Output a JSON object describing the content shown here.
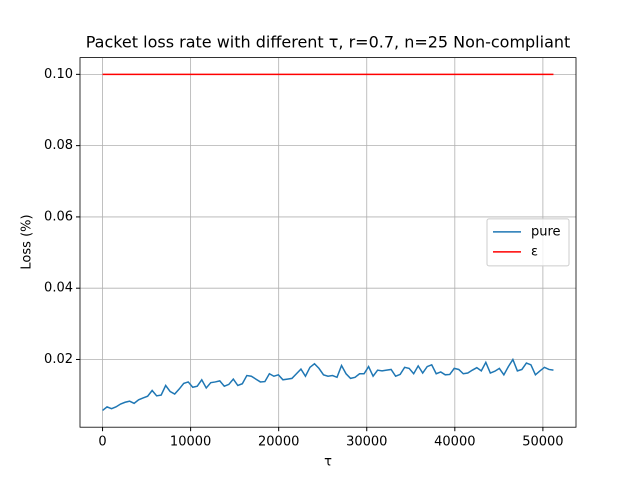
{
  "chart_data": {
    "type": "line",
    "title": "Packet loss rate with different τ, r=0.7, n=25 Non-compliant",
    "xlabel": "τ",
    "ylabel": "Loss (%)",
    "x": [
      0,
      512,
      1024,
      1536,
      2048,
      2560,
      3072,
      3584,
      4096,
      4608,
      5120,
      5632,
      6144,
      6656,
      7168,
      7680,
      8192,
      8704,
      9216,
      9728,
      10240,
      10752,
      11264,
      11776,
      12288,
      12800,
      13312,
      13824,
      14336,
      14848,
      15360,
      15872,
      16384,
      16896,
      17408,
      17920,
      18432,
      18944,
      19456,
      19968,
      20480,
      20992,
      21504,
      22016,
      22528,
      23040,
      23552,
      24064,
      24576,
      25088,
      25600,
      26112,
      26624,
      27136,
      27648,
      28160,
      28672,
      29184,
      29696,
      30208,
      30720,
      31232,
      31744,
      32256,
      32768,
      33280,
      33792,
      34304,
      34816,
      35328,
      35840,
      36352,
      36864,
      37376,
      37888,
      38400,
      38912,
      39424,
      39936,
      40448,
      40960,
      41472,
      41984,
      42496,
      43008,
      43520,
      44032,
      44544,
      45056,
      45568,
      46080,
      46592,
      47104,
      47616,
      48128,
      48640,
      49152,
      49664,
      50176,
      50688,
      51200
    ],
    "series": [
      {
        "name": "pure",
        "color": "#1f77b4",
        "values": [
          0.0057,
          0.0067,
          0.0062,
          0.0067,
          0.0075,
          0.008,
          0.0083,
          0.0077,
          0.0087,
          0.0092,
          0.0097,
          0.0113,
          0.0098,
          0.01,
          0.0127,
          0.011,
          0.0103,
          0.0117,
          0.0133,
          0.0137,
          0.0122,
          0.0125,
          0.0143,
          0.012,
          0.0135,
          0.0137,
          0.014,
          0.0125,
          0.013,
          0.0145,
          0.0127,
          0.0132,
          0.0155,
          0.0153,
          0.0145,
          0.0137,
          0.0138,
          0.016,
          0.0153,
          0.0157,
          0.0143,
          0.0145,
          0.0147,
          0.016,
          0.0173,
          0.0153,
          0.0178,
          0.0188,
          0.0175,
          0.0157,
          0.0153,
          0.0155,
          0.015,
          0.0183,
          0.016,
          0.0147,
          0.015,
          0.016,
          0.016,
          0.018,
          0.0153,
          0.017,
          0.0168,
          0.017,
          0.0172,
          0.0153,
          0.0158,
          0.0178,
          0.0175,
          0.016,
          0.0182,
          0.0162,
          0.018,
          0.0185,
          0.016,
          0.0165,
          0.0157,
          0.0158,
          0.0175,
          0.0172,
          0.016,
          0.0162,
          0.017,
          0.0177,
          0.0168,
          0.0192,
          0.0162,
          0.0167,
          0.0175,
          0.0157,
          0.018,
          0.02,
          0.0168,
          0.0172,
          0.019,
          0.0185,
          0.0157,
          0.0168,
          0.0178,
          0.0172,
          0.017
        ]
      },
      {
        "name": "ε",
        "color": "#ff0000",
        "values": [
          0.1,
          0.1,
          0.1,
          0.1,
          0.1,
          0.1,
          0.1,
          0.1,
          0.1,
          0.1,
          0.1,
          0.1,
          0.1,
          0.1,
          0.1,
          0.1,
          0.1,
          0.1,
          0.1,
          0.1,
          0.1,
          0.1,
          0.1,
          0.1,
          0.1,
          0.1,
          0.1,
          0.1,
          0.1,
          0.1,
          0.1,
          0.1,
          0.1,
          0.1,
          0.1,
          0.1,
          0.1,
          0.1,
          0.1,
          0.1,
          0.1,
          0.1,
          0.1,
          0.1,
          0.1,
          0.1,
          0.1,
          0.1,
          0.1,
          0.1,
          0.1,
          0.1,
          0.1,
          0.1,
          0.1,
          0.1,
          0.1,
          0.1,
          0.1,
          0.1,
          0.1,
          0.1,
          0.1,
          0.1,
          0.1,
          0.1,
          0.1,
          0.1,
          0.1,
          0.1,
          0.1,
          0.1,
          0.1,
          0.1,
          0.1,
          0.1,
          0.1,
          0.1,
          0.1,
          0.1,
          0.1,
          0.1,
          0.1,
          0.1,
          0.1,
          0.1,
          0.1,
          0.1,
          0.1,
          0.1,
          0.1,
          0.1,
          0.1,
          0.1,
          0.1,
          0.1,
          0.1,
          0.1,
          0.1,
          0.1,
          0.1
        ]
      }
    ],
    "xlim": [
      -2560,
      53760
    ],
    "xticks": [
      0,
      10000,
      20000,
      30000,
      40000,
      50000
    ],
    "ylim": [
      0.001,
      0.1047
    ],
    "yticks": [
      0.02,
      0.04,
      0.06,
      0.08,
      {
        "value": 0.1,
        "label": "0.10"
      }
    ],
    "grid": true,
    "legend": "center right"
  }
}
